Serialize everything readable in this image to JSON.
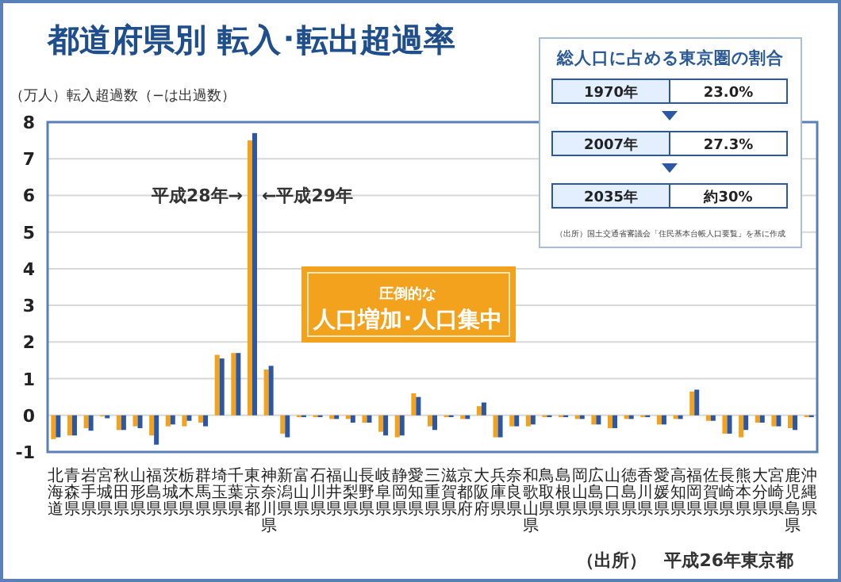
{
  "chart_data": [
    {
      "type": "bar",
      "title": "都道府県別 転入･転出超過率",
      "ylabel": "（万人）転入超過数（−は出過数）",
      "categories": [
        "北海道",
        "青森県",
        "岩手県",
        "宮城県",
        "秋田県",
        "山形県",
        "福島県",
        "茨城県",
        "栃木県",
        "群馬県",
        "埼玉県",
        "千葉県",
        "東京都",
        "神奈川県",
        "新潟県",
        "富山県",
        "石川県",
        "福井県",
        "山梨県",
        "長野県",
        "岐阜県",
        "静岡県",
        "愛知県",
        "三重県",
        "滋賀県",
        "京都府",
        "大阪府",
        "兵庫県",
        "奈良県",
        "和歌山県",
        "鳥取県",
        "島根県",
        "岡山県",
        "広島県",
        "山口県",
        "徳島県",
        "香川県",
        "愛媛県",
        "高知県",
        "福岡県",
        "佐賀県",
        "長崎県",
        "熊本県",
        "大分県",
        "宮崎県",
        "鹿児島県",
        "沖縄県"
      ],
      "series": [
        {
          "name": "平成28年→",
          "color": "#f2a21c",
          "values": [
            -0.65,
            -0.55,
            -0.35,
            -0.03,
            -0.4,
            -0.3,
            -0.55,
            -0.3,
            -0.3,
            -0.2,
            1.65,
            1.7,
            7.5,
            1.25,
            -0.5,
            -0.05,
            -0.05,
            -0.1,
            -0.1,
            -0.2,
            -0.45,
            -0.6,
            0.6,
            -0.3,
            -0.05,
            -0.1,
            0.25,
            -0.6,
            -0.3,
            -0.3,
            -0.05,
            -0.05,
            -0.1,
            -0.25,
            -0.35,
            -0.1,
            -0.05,
            -0.25,
            -0.1,
            0.65,
            -0.15,
            -0.5,
            -0.6,
            -0.2,
            -0.3,
            -0.35,
            -0.05
          ]
        },
        {
          "name": "←平成29年",
          "color": "#2b57a3",
          "values": [
            -0.6,
            -0.55,
            -0.42,
            -0.08,
            -0.4,
            -0.35,
            -0.8,
            -0.25,
            -0.15,
            -0.3,
            1.55,
            1.7,
            7.7,
            1.35,
            -0.6,
            -0.05,
            -0.05,
            -0.1,
            -0.2,
            -0.2,
            -0.55,
            -0.55,
            0.5,
            -0.4,
            -0.05,
            -0.1,
            0.35,
            -0.6,
            -0.3,
            -0.25,
            -0.05,
            -0.05,
            -0.1,
            -0.25,
            -0.35,
            -0.1,
            -0.05,
            -0.25,
            -0.1,
            0.7,
            -0.15,
            -0.5,
            -0.4,
            -0.2,
            -0.3,
            -0.4,
            -0.05
          ]
        }
      ],
      "ylim": [
        -1,
        8
      ],
      "yticks": [
        -1,
        0,
        1,
        2,
        3,
        4,
        5,
        6,
        7,
        8
      ],
      "grid": "y",
      "annotations": [
        "圧倒的な",
        "人口増加･人口集中",
        "（出所）　平成26年東京都"
      ]
    },
    {
      "type": "other",
      "title": "総人口に占める東京圏の割合",
      "categories": [
        "1970年",
        "2007年",
        "2035年"
      ],
      "value_labels": [
        "23.0%",
        "27.3%",
        "約30%"
      ],
      "annotations": [
        "（出所）国土交通省審議会「住民基本台帳人口要覧」を基に作成"
      ]
    }
  ]
}
